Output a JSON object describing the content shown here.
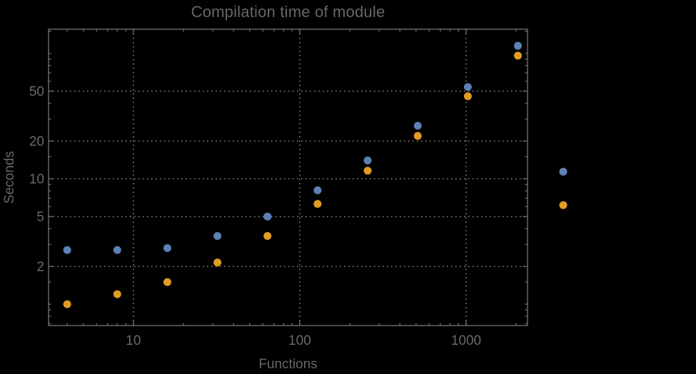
{
  "window": {
    "background": "#000000"
  },
  "colors": {
    "background": "#000000",
    "text": "#666666",
    "tick_label": "#696969",
    "frame": "#767676",
    "grid": "#8a8a8a",
    "series_blue": "#5E81B5",
    "series_orange": "#E19C24"
  },
  "chart_data": {
    "type": "scatter",
    "title": "Compilation time of module",
    "xlabel": "Functions",
    "ylabel": "Seconds",
    "x_scale": "log",
    "y_scale": "log",
    "xlim": [
      3.09,
      2340
    ],
    "ylim": [
      0.675,
      156
    ],
    "grid": "dotted lines at labeled major ticks, frame on all four sides",
    "legend": {
      "position": "outside-right",
      "labels_visible": false,
      "markers": [
        "blue",
        "orange"
      ]
    },
    "x": [
      4,
      8,
      16,
      32,
      64,
      128,
      256,
      512,
      1024,
      2048
    ],
    "series": [
      {
        "name": "blue",
        "color": "#5E81B5",
        "values": [
          2.7,
          2.7,
          2.8,
          3.5,
          5.0,
          8.1,
          14.0,
          26.5,
          54.0,
          115.0
        ]
      },
      {
        "name": "orange",
        "color": "#E19C24",
        "values": [
          1.0,
          1.2,
          1.5,
          2.15,
          3.5,
          6.3,
          11.6,
          22.0,
          45.5,
          96.0
        ]
      }
    ],
    "x_ticks": {
      "major": [
        10,
        100,
        1000
      ],
      "minor": [
        4,
        5,
        6,
        7,
        8,
        9,
        20,
        30,
        40,
        50,
        60,
        70,
        80,
        90,
        200,
        300,
        400,
        500,
        600,
        700,
        800,
        900,
        2000
      ]
    },
    "y_ticks": {
      "major": [
        2,
        5,
        10,
        20,
        50
      ],
      "minor": [
        0.7,
        0.8,
        0.9,
        1,
        1.5,
        3,
        4,
        6,
        7,
        8,
        9,
        15,
        30,
        40,
        60,
        70,
        80,
        90,
        100,
        150
      ]
    }
  }
}
